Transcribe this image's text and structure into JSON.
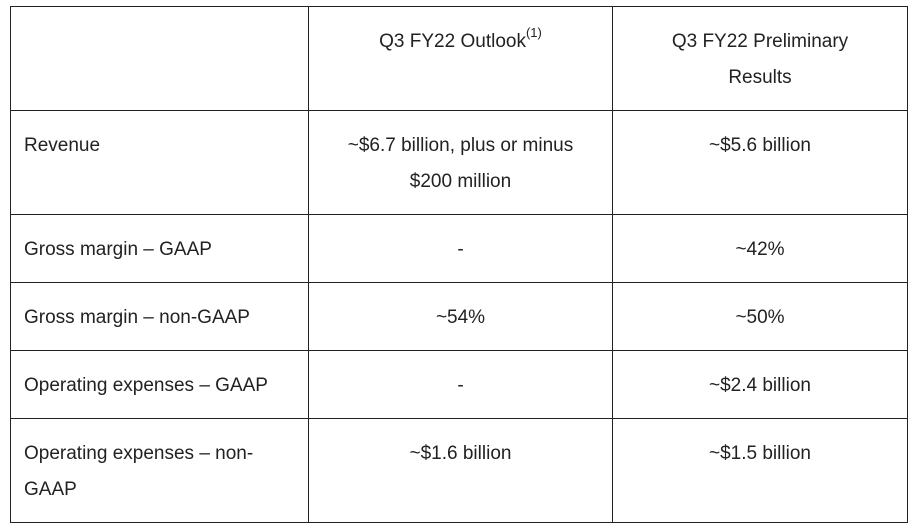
{
  "table": {
    "header": {
      "empty": "",
      "outlook_label": "Q3 FY22 Outlook",
      "outlook_footnote": "(1)",
      "results_label": "Q3 FY22 Preliminary Results"
    },
    "rows": [
      {
        "metric": "Revenue",
        "outlook": "~$6.7 billion, plus or minus $200 million",
        "results": "~$5.6 billion"
      },
      {
        "metric": "Gross margin – GAAP",
        "outlook": "-",
        "results": "~42%"
      },
      {
        "metric": "Gross margin – non-GAAP",
        "outlook": "~54%",
        "results": "~50%"
      },
      {
        "metric": "Operating expenses – GAAP",
        "outlook": "-",
        "results": "~$2.4 billion"
      },
      {
        "metric": "Operating expenses – non-GAAP",
        "outlook": "~$1.6 billion",
        "results": "~$1.5 billion"
      }
    ]
  }
}
